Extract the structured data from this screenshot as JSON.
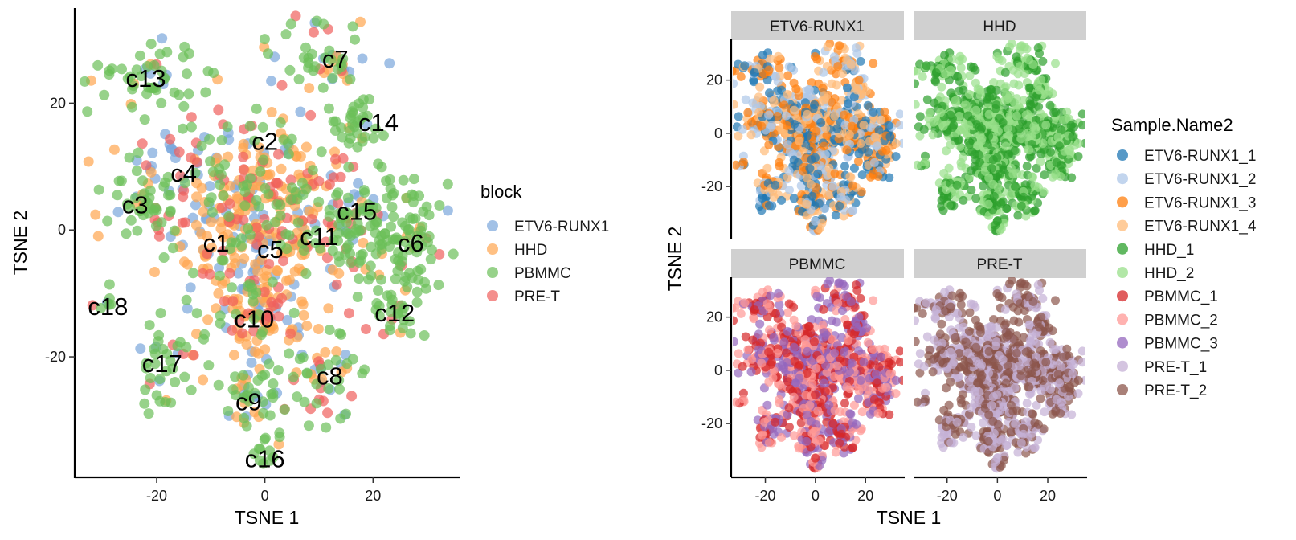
{
  "chart_data": [
    {
      "type": "scatter",
      "title": "",
      "xlabel": "TSNE 1",
      "ylabel": "TSNE 2",
      "xlim": [
        -35,
        36
      ],
      "ylim": [
        -39,
        35
      ],
      "xticks": [
        -20,
        0,
        20
      ],
      "yticks": [
        -20,
        0,
        20
      ],
      "grid": false,
      "legend": {
        "title": "block",
        "placement": "right",
        "entries": [
          {
            "label": "ETV6-RUNX1",
            "color": "#7AA6DC"
          },
          {
            "label": "HHD",
            "color": "#FFA54F"
          },
          {
            "label": "PBMMC",
            "color": "#6BBF59"
          },
          {
            "label": "PRE-T",
            "color": "#F0605D"
          }
        ]
      },
      "cluster_labels": [
        {
          "label": "c13",
          "x": -22,
          "y": 24
        },
        {
          "label": "c7",
          "x": 13,
          "y": 27
        },
        {
          "label": "c14",
          "x": 21,
          "y": 17
        },
        {
          "label": "c2",
          "x": 0,
          "y": 14
        },
        {
          "label": "c4",
          "x": -15,
          "y": 9
        },
        {
          "label": "c3",
          "x": -24,
          "y": 4
        },
        {
          "label": "c15",
          "x": 17,
          "y": 3
        },
        {
          "label": "c1",
          "x": -9,
          "y": -2
        },
        {
          "label": "c5",
          "x": 1,
          "y": -3
        },
        {
          "label": "c11",
          "x": 10,
          "y": -1
        },
        {
          "label": "c6",
          "x": 27,
          "y": -2
        },
        {
          "label": "c18",
          "x": -29,
          "y": -12
        },
        {
          "label": "c10",
          "x": -2,
          "y": -14
        },
        {
          "label": "c12",
          "x": 24,
          "y": -13
        },
        {
          "label": "c17",
          "x": -19,
          "y": -21
        },
        {
          "label": "c8",
          "x": 12,
          "y": -23
        },
        {
          "label": "c9",
          "x": -3,
          "y": -27
        },
        {
          "label": "c16",
          "x": 0,
          "y": -36
        }
      ]
    },
    {
      "type": "scatter",
      "title": "",
      "xlabel": "TSNE 1",
      "ylabel": "TSNE 2",
      "xlim": [
        -33,
        35
      ],
      "ylim": [
        -39,
        35
      ],
      "xticks": [
        -20,
        0,
        20
      ],
      "yticks": [
        -20,
        0,
        20
      ],
      "grid": false,
      "facets": [
        {
          "label": "ETV6-RUNX1",
          "samples": [
            "ETV6-RUNX1_1",
            "ETV6-RUNX1_2",
            "ETV6-RUNX1_3",
            "ETV6-RUNX1_4"
          ]
        },
        {
          "label": "HHD",
          "samples": [
            "HHD_1",
            "HHD_2"
          ]
        },
        {
          "label": "PBMMC",
          "samples": [
            "PBMMC_1",
            "PBMMC_2",
            "PBMMC_3"
          ]
        },
        {
          "label": "PRE-T",
          "samples": [
            "PRE-T_1",
            "PRE-T_2"
          ]
        }
      ],
      "legend": {
        "title": "Sample.Name2",
        "placement": "right",
        "entries": [
          {
            "label": "ETV6-RUNX1_1",
            "color": "#1F77B4"
          },
          {
            "label": "ETV6-RUNX1_2",
            "color": "#AEC7E8"
          },
          {
            "label": "ETV6-RUNX1_3",
            "color": "#FF7F0E"
          },
          {
            "label": "ETV6-RUNX1_4",
            "color": "#FFBB78"
          },
          {
            "label": "HHD_1",
            "color": "#2CA02C"
          },
          {
            "label": "HHD_2",
            "color": "#98DF8A"
          },
          {
            "label": "PBMMC_1",
            "color": "#D62728"
          },
          {
            "label": "PBMMC_2",
            "color": "#FF9896"
          },
          {
            "label": "PBMMC_3",
            "color": "#9467BD"
          },
          {
            "label": "PRE-T_1",
            "color": "#C5B0D5"
          },
          {
            "label": "PRE-T_2",
            "color": "#8C564B"
          }
        ]
      }
    }
  ]
}
